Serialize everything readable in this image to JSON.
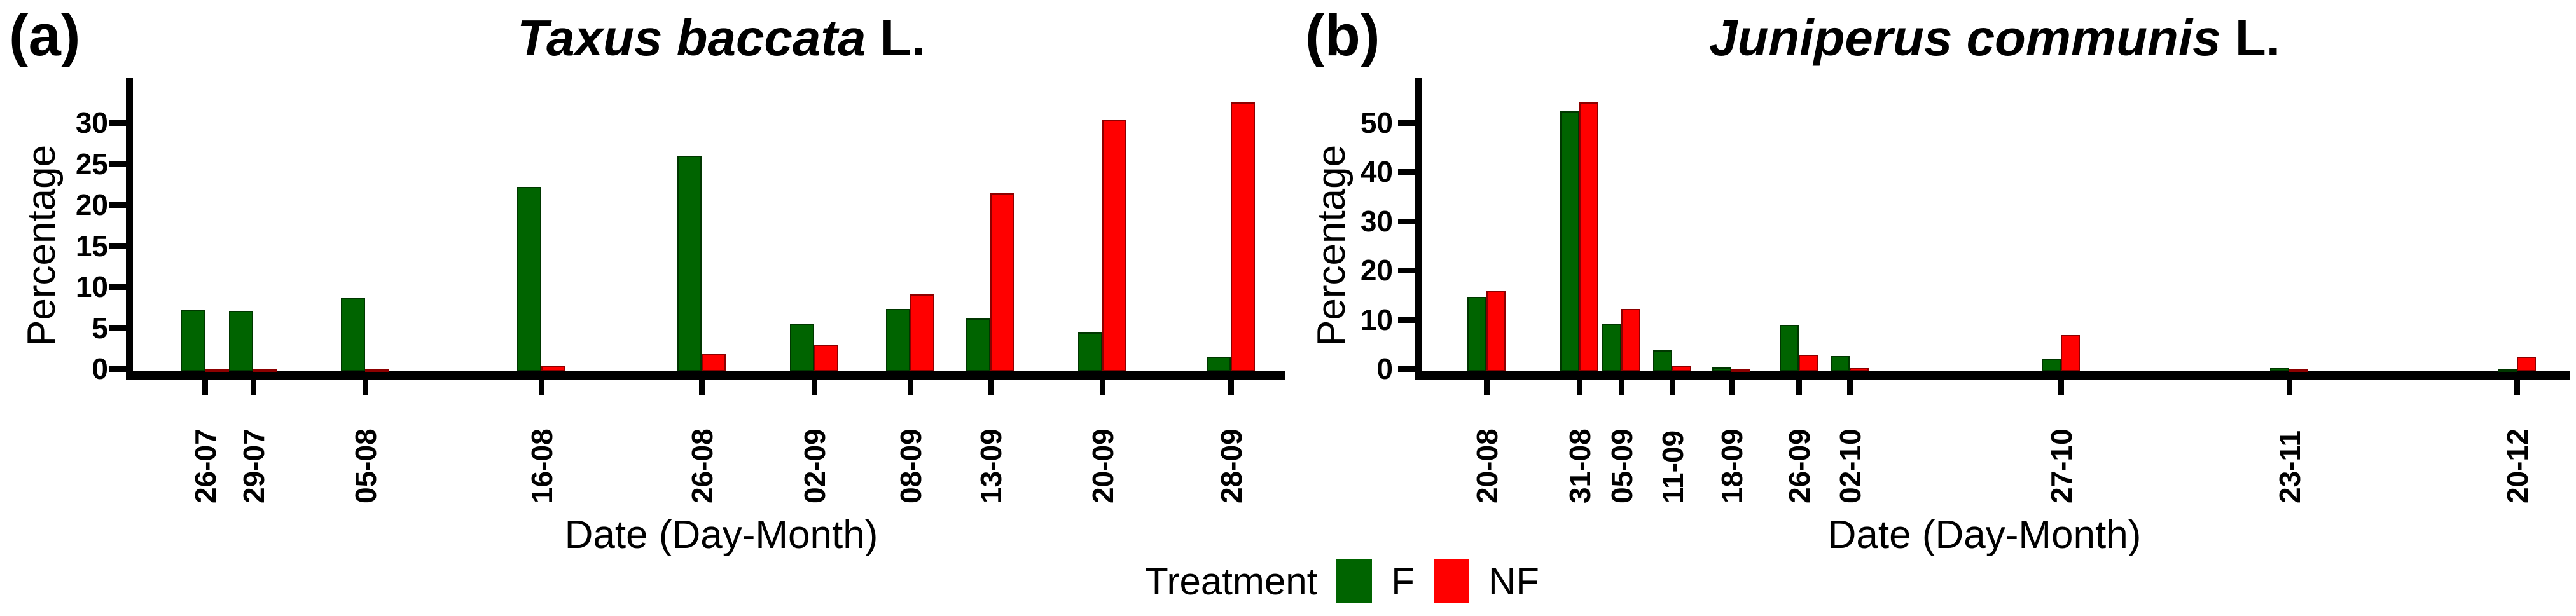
{
  "figure": {
    "panels": [
      {
        "panel_label": "(a)",
        "title_species": "Taxus baccata",
        "title_suffix": " L.",
        "ylabel": "Percentage",
        "xlabel": "Date (Day-Month)"
      },
      {
        "panel_label": "(b)",
        "title_species": "Juniperus communis",
        "title_suffix": " L.",
        "ylabel": "Percentage",
        "xlabel": "Date (Day-Month)"
      }
    ]
  },
  "legend": {
    "title": "Treatment",
    "items": [
      {
        "label": "F",
        "color": "#006400"
      },
      {
        "label": "NF",
        "color": "#ff0000"
      }
    ]
  },
  "chart_data": [
    {
      "type": "bar",
      "panel": "a",
      "title": "Taxus baccata L.",
      "xlabel": "Date (Day-Month)",
      "ylabel": "Percentage",
      "x_scale": "time-proportional (day-month)",
      "grid": false,
      "legend_position": "bottom",
      "ylim": [
        0,
        33
      ],
      "yticks": [
        0,
        5,
        10,
        15,
        20,
        25,
        30
      ],
      "categories": [
        "26-07",
        "29-07",
        "05-08",
        "16-08",
        "26-08",
        "02-09",
        "08-09",
        "13-09",
        "20-09",
        "28-09"
      ],
      "series": [
        {
          "name": "F",
          "color": "#006400",
          "values": [
            7.5,
            7.4,
            9.0,
            22.5,
            26.3,
            5.7,
            7.6,
            6.4,
            4.7,
            1.8
          ]
        },
        {
          "name": "NF",
          "color": "#ff0000",
          "values": [
            0.2,
            0.2,
            0.2,
            0.6,
            2.1,
            3.2,
            9.4,
            21.7,
            30.6,
            32.8
          ]
        }
      ]
    },
    {
      "type": "bar",
      "panel": "b",
      "title": "Juniperus communis L.",
      "xlabel": "Date (Day-Month)",
      "ylabel": "Percentage",
      "x_scale": "time-proportional (day-month)",
      "grid": false,
      "legend_position": "bottom",
      "ylim": [
        0,
        56
      ],
      "yticks": [
        0,
        10,
        20,
        30,
        40,
        50
      ],
      "categories": [
        "20-08",
        "31-08",
        "05-09",
        "11-09",
        "18-09",
        "26-09",
        "02-10",
        "27-10",
        "23-11",
        "20-12"
      ],
      "series": [
        {
          "name": "F",
          "color": "#006400",
          "values": [
            15.1,
            52.8,
            9.7,
            4.3,
            0.8,
            9.4,
            3.1,
            2.4,
            0.7,
            0.2
          ]
        },
        {
          "name": "NF",
          "color": "#ff0000",
          "values": [
            16.3,
            54.7,
            12.6,
            1.2,
            0.2,
            3.4,
            0.7,
            7.3,
            0.4,
            3.0
          ]
        }
      ]
    }
  ]
}
